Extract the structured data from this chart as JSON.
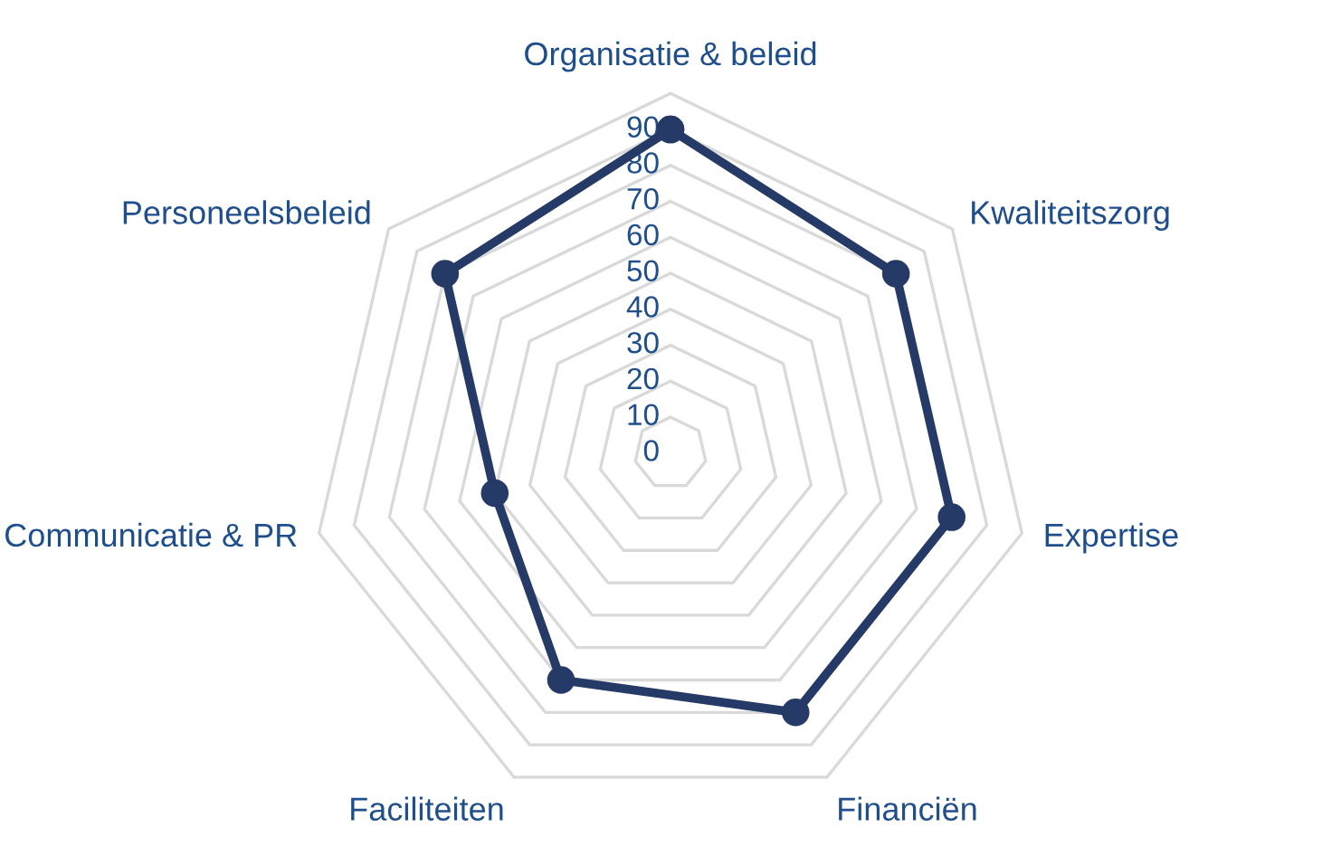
{
  "chart_data": {
    "type": "radar",
    "categories": [
      "Organisatie & beleid",
      "Kwaliteitszorg",
      "Expertise",
      "Financiën",
      "Faciliteiten",
      "Communicatie & PR",
      "Personeelsbeleid"
    ],
    "series": [
      {
        "color": "#253a66",
        "values": [
          90,
          80,
          80,
          80,
          70,
          50,
          80
        ]
      }
    ],
    "ylim": [
      0,
      100
    ],
    "yticks": [
      0,
      10,
      20,
      30,
      40,
      50,
      60,
      70,
      80,
      90
    ],
    "grid": true,
    "marker": "circle",
    "line_style": "solid"
  }
}
